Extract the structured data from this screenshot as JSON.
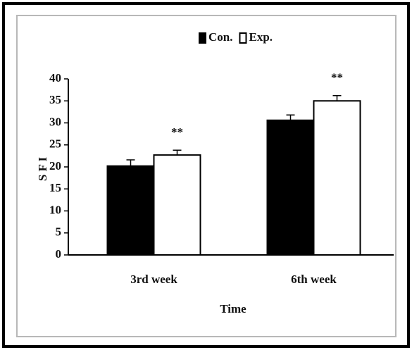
{
  "chart_data": {
    "type": "bar",
    "xlabel": "Time",
    "ylabel": "S F I",
    "categories": [
      "3rd week",
      "6th week"
    ],
    "series": [
      {
        "name": "Con.",
        "color": "#000000",
        "values": [
          20.2,
          30.6
        ],
        "errors": [
          1.4,
          1.2
        ]
      },
      {
        "name": "Exp.",
        "color": "#ffffff",
        "values": [
          22.7,
          35.0
        ],
        "errors": [
          1.1,
          1.2
        ],
        "annotations": [
          "**",
          "**"
        ]
      }
    ],
    "ylim": [
      0,
      40
    ],
    "yticks": [
      0,
      5,
      10,
      15,
      20,
      25,
      30,
      35,
      40
    ],
    "legend": "top"
  }
}
